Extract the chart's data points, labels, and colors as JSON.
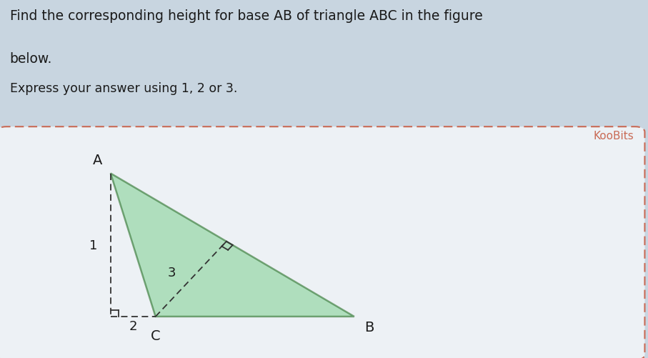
{
  "bg_color": "#c8d5e0",
  "box_bg": "#edf1f5",
  "box_border_color": "#c96a55",
  "title_line1": "Find the corresponding height for base AB of triangle ABC in the figure",
  "title_line2": "below.",
  "subtitle": "Express your answer using 1, 2 or 3.",
  "koobits_text": "KooBits",
  "koobits_color": "#c96a55",
  "title_color": "#1a1a1a",
  "triangle_fill": "#8ed4a0",
  "triangle_alpha": 0.65,
  "triangle_edge_color": "#3a7a3a",
  "A": [
    0.38,
    2.1
  ],
  "B": [
    3.2,
    0.0
  ],
  "C": [
    0.9,
    0.0
  ],
  "foot_x": 0.38,
  "foot_y": 0.0,
  "xlim": [
    -0.15,
    4.2
  ],
  "ylim": [
    -0.45,
    2.6
  ]
}
